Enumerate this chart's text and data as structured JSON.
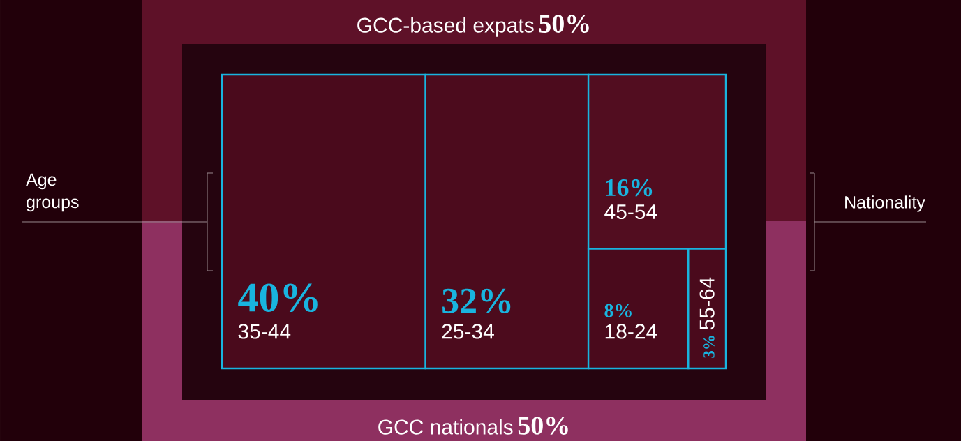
{
  "chart_data": [
    {
      "type": "other",
      "title": "Nationality",
      "categories": [
        "GCC-based expats",
        "GCC nationals"
      ],
      "values": [
        50,
        50
      ],
      "value_labels": [
        "50%",
        "50%"
      ],
      "colors": [
        "#5e1128",
        "#8e3060"
      ]
    },
    {
      "type": "other",
      "title": "Age groups",
      "categories": [
        "35-44",
        "25-34",
        "45-54",
        "18-24",
        "55-64"
      ],
      "values": [
        40,
        32,
        16,
        8,
        3
      ],
      "value_labels": [
        "40%",
        "32%",
        "16%",
        "8%",
        "3%"
      ],
      "colors": [
        "#4a0a1c",
        "#4c0b1d",
        "#520d20",
        "#4a0a1c",
        "#4a0a1c"
      ]
    }
  ]
}
